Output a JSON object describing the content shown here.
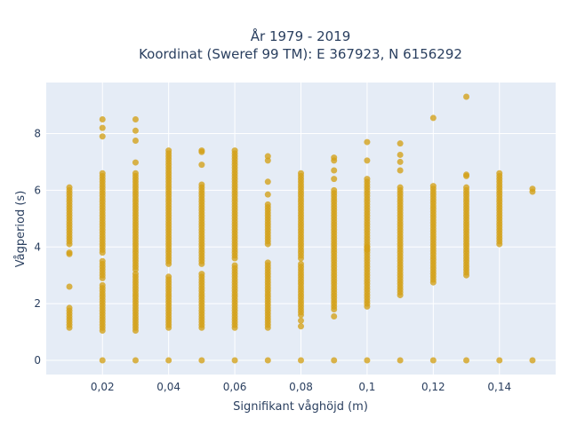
{
  "chart_data": {
    "type": "scatter",
    "title": {
      "line1": "År 1979 - 2019",
      "line2": "Koordinat (Sweref 99 TM): E 367923, N 6156292"
    },
    "xlabel": "Signifikant våghöjd (m)",
    "ylabel": "Vågperiod (s)",
    "xlim": [
      0.003,
      0.157
    ],
    "ylim": [
      -0.5,
      9.8
    ],
    "x_ticks": [
      0.02,
      0.04,
      0.06,
      0.08,
      0.1,
      0.12,
      0.14
    ],
    "x_tick_labels": [
      "0,02",
      "0,04",
      "0,06",
      "0,08",
      "0,1",
      "0,12",
      "0,14"
    ],
    "y_ticks": [
      0,
      2,
      4,
      6,
      8
    ],
    "y_tick_labels": [
      "0",
      "2",
      "4",
      "6",
      "8"
    ],
    "grid": true,
    "legend": "none",
    "colors": {
      "marker": "#d4a017",
      "plot_background": "#e5ecf6",
      "grid": "#ffffff",
      "text": "#2a3f5f"
    },
    "columns": [
      {
        "x": 0.01,
        "ranges": [
          [
            1.15,
            1.9
          ],
          [
            4.1,
            6.1
          ]
        ],
        "points": [
          2.6,
          3.8,
          3.75
        ]
      },
      {
        "x": 0.02,
        "ranges": [
          [
            1.05,
            2.65
          ],
          [
            2.9,
            3.5
          ],
          [
            3.8,
            6.6
          ]
        ],
        "points": [
          0,
          7.9,
          8.2,
          8.5
        ]
      },
      {
        "x": 0.03,
        "ranges": [
          [
            1.05,
            3.1
          ],
          [
            3.2,
            6.6
          ]
        ],
        "points": [
          0,
          6.98,
          7.75,
          8.1,
          8.5
        ]
      },
      {
        "x": 0.04,
        "ranges": [
          [
            1.15,
            2.95
          ],
          [
            3.4,
            7.4
          ]
        ],
        "points": [
          0
        ]
      },
      {
        "x": 0.05,
        "ranges": [
          [
            1.15,
            3.1
          ],
          [
            3.4,
            6.2
          ]
        ],
        "points": [
          0,
          6.9,
          7.35,
          7.4
        ]
      },
      {
        "x": 0.06,
        "ranges": [
          [
            1.15,
            3.4
          ],
          [
            3.6,
            7.4
          ]
        ],
        "points": [
          0
        ]
      },
      {
        "x": 0.07,
        "ranges": [
          [
            1.15,
            3.45
          ],
          [
            4.1,
            5.5
          ]
        ],
        "points": [
          0,
          5.85,
          6.3,
          7.05,
          7.2
        ]
      },
      {
        "x": 0.08,
        "ranges": [
          [
            1.6,
            3.4
          ],
          [
            3.6,
            6.6
          ]
        ],
        "points": [
          0,
          1.2,
          1.4
        ]
      },
      {
        "x": 0.09,
        "ranges": [
          [
            1.8,
            3.7
          ],
          [
            3.8,
            6.0
          ]
        ],
        "points": [
          0,
          1.55,
          6.4,
          6.7,
          7.05,
          7.15
        ]
      },
      {
        "x": 0.1,
        "ranges": [
          [
            1.9,
            3.3
          ],
          [
            3.4,
            6.4
          ]
        ],
        "points": [
          0,
          3.9,
          4.0,
          7.05,
          7.7
        ]
      },
      {
        "x": 0.11,
        "ranges": [
          [
            2.3,
            6.1
          ]
        ],
        "points": [
          0,
          6.7,
          7.0,
          7.25,
          7.65
        ]
      },
      {
        "x": 0.12,
        "ranges": [
          [
            2.75,
            6.15
          ]
        ],
        "points": [
          0,
          8.55
        ]
      },
      {
        "x": 0.13,
        "ranges": [
          [
            3.0,
            6.1
          ]
        ],
        "points": [
          0,
          6.5,
          6.55,
          9.3
        ]
      },
      {
        "x": 0.14,
        "ranges": [
          [
            4.1,
            6.6
          ]
        ],
        "points": [
          0
        ]
      },
      {
        "x": 0.15,
        "ranges": [
          [
            5.95,
            6.1
          ]
        ],
        "points": [
          0
        ]
      }
    ]
  }
}
